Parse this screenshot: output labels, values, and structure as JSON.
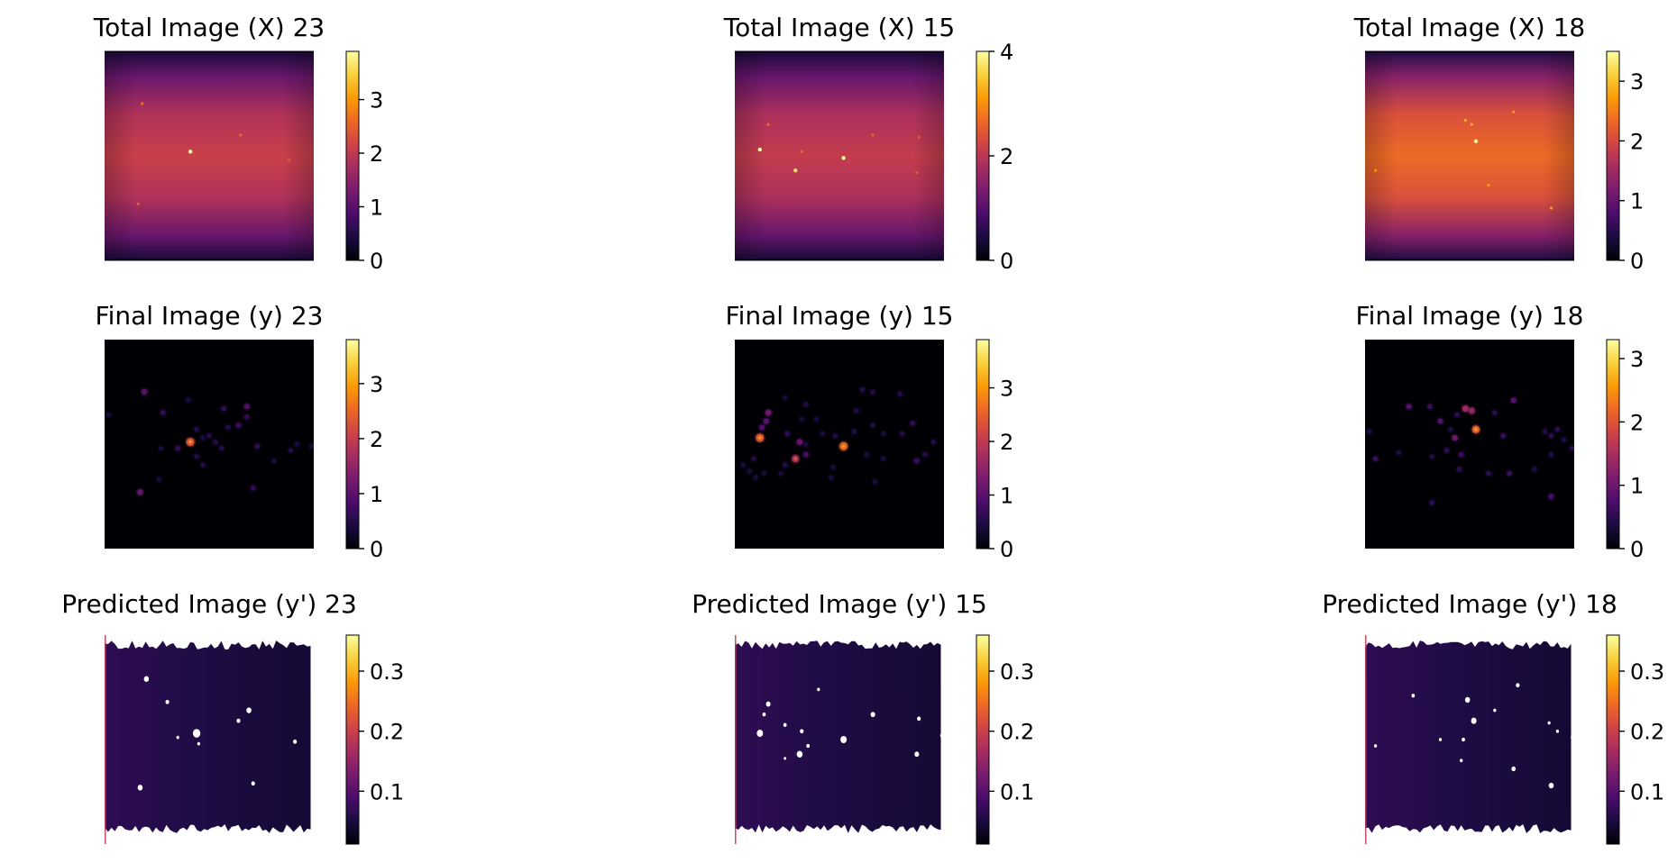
{
  "chart_data": [
    {
      "type": "heatmap",
      "title": "Total Image (X) 23",
      "kind": "total",
      "colormap": "inferno",
      "clim": [
        0,
        3.9
      ],
      "colorbar_ticks": [
        0,
        1,
        2,
        3
      ],
      "colorbar_tick_labels": [
        "0",
        "1",
        "2",
        "3"
      ],
      "background_level": 2.1,
      "hotspots": [
        [
          0.41,
          0.48,
          2.6
        ],
        [
          0.18,
          0.25,
          0.6
        ],
        [
          0.65,
          0.4,
          0.5
        ],
        [
          0.16,
          0.73,
          0.4
        ],
        [
          0.88,
          0.52,
          0.3
        ]
      ]
    },
    {
      "type": "heatmap",
      "title": "Total Image (X) 15",
      "kind": "total",
      "colormap": "inferno",
      "clim": [
        0,
        4.0
      ],
      "colorbar_ticks": [
        0,
        2,
        4
      ],
      "colorbar_tick_labels": [
        "0",
        "2",
        "4"
      ],
      "background_level": 2.1,
      "hotspots": [
        [
          0.12,
          0.47,
          2.2
        ],
        [
          0.52,
          0.51,
          2.2
        ],
        [
          0.29,
          0.57,
          1.6
        ],
        [
          0.16,
          0.35,
          0.6
        ],
        [
          0.32,
          0.48,
          0.5
        ],
        [
          0.66,
          0.4,
          0.5
        ],
        [
          0.88,
          0.41,
          0.4
        ],
        [
          0.87,
          0.58,
          0.4
        ]
      ]
    },
    {
      "type": "heatmap",
      "title": "Total Image (X) 18",
      "kind": "total",
      "colormap": "inferno",
      "clim": [
        0,
        3.5
      ],
      "colorbar_ticks": [
        0,
        1,
        2,
        3
      ],
      "colorbar_tick_labels": [
        "0",
        "1",
        "2",
        "3"
      ],
      "background_level": 2.35,
      "hotspots": [
        [
          0.53,
          0.43,
          1.1
        ],
        [
          0.48,
          0.33,
          0.6
        ],
        [
          0.51,
          0.35,
          0.5
        ],
        [
          0.71,
          0.29,
          0.4
        ],
        [
          0.59,
          0.64,
          0.4
        ],
        [
          0.89,
          0.75,
          0.4
        ],
        [
          0.05,
          0.57,
          0.3
        ]
      ]
    },
    {
      "type": "heatmap",
      "title": "Final Image (y) 23",
      "kind": "final",
      "colormap": "inferno",
      "clim": [
        0,
        3.8
      ],
      "colorbar_ticks": [
        0,
        1,
        2,
        3
      ],
      "colorbar_tick_labels": [
        "0",
        "1",
        "2",
        "3"
      ],
      "points": [
        [
          0.41,
          0.49,
          2.3
        ],
        [
          0.19,
          0.25,
          1.0
        ],
        [
          0.17,
          0.73,
          1.1
        ],
        [
          0.68,
          0.32,
          0.9
        ],
        [
          0.57,
          0.33,
          0.6
        ],
        [
          0.68,
          0.37,
          0.6
        ],
        [
          0.28,
          0.35,
          0.6
        ],
        [
          0.4,
          0.29,
          0.4
        ],
        [
          0.35,
          0.52,
          0.6
        ],
        [
          0.44,
          0.56,
          0.5
        ],
        [
          0.5,
          0.46,
          0.5
        ],
        [
          0.53,
          0.49,
          0.5
        ],
        [
          0.56,
          0.52,
          0.5
        ],
        [
          0.64,
          0.41,
          0.7
        ],
        [
          0.44,
          0.43,
          0.5
        ],
        [
          0.59,
          0.42,
          0.5
        ],
        [
          0.27,
          0.52,
          0.4
        ],
        [
          0.47,
          0.6,
          0.5
        ],
        [
          0.73,
          0.51,
          0.6
        ],
        [
          0.89,
          0.53,
          0.5
        ],
        [
          0.99,
          0.51,
          0.4
        ],
        [
          0.92,
          0.5,
          0.4
        ],
        [
          0.81,
          0.58,
          0.4
        ],
        [
          0.71,
          0.71,
          0.6
        ],
        [
          0.26,
          0.67,
          0.4
        ],
        [
          0.02,
          0.36,
          0.4
        ],
        [
          0.47,
          0.47,
          0.4
        ]
      ]
    },
    {
      "type": "heatmap",
      "title": "Final Image (y) 15",
      "kind": "final",
      "colormap": "inferno",
      "clim": [
        0,
        3.9
      ],
      "colorbar_ticks": [
        0,
        1,
        2,
        3
      ],
      "colorbar_tick_labels": [
        "0",
        "1",
        "2",
        "3"
      ],
      "points": [
        [
          0.12,
          0.47,
          2.4
        ],
        [
          0.52,
          0.51,
          2.5
        ],
        [
          0.29,
          0.57,
          1.8
        ],
        [
          0.16,
          0.35,
          1.2
        ],
        [
          0.15,
          0.39,
          1.0
        ],
        [
          0.13,
          0.42,
          0.9
        ],
        [
          0.31,
          0.49,
          1.1
        ],
        [
          0.34,
          0.55,
          0.8
        ],
        [
          0.25,
          0.45,
          0.6
        ],
        [
          0.24,
          0.6,
          0.5
        ],
        [
          0.09,
          0.57,
          0.5
        ],
        [
          0.07,
          0.63,
          0.4
        ],
        [
          0.14,
          0.64,
          0.4
        ],
        [
          0.22,
          0.64,
          0.4
        ],
        [
          0.34,
          0.31,
          0.5
        ],
        [
          0.32,
          0.38,
          0.4
        ],
        [
          0.39,
          0.38,
          0.4
        ],
        [
          0.42,
          0.45,
          0.4
        ],
        [
          0.47,
          0.61,
          0.4
        ],
        [
          0.58,
          0.34,
          0.5
        ],
        [
          0.66,
          0.41,
          0.5
        ],
        [
          0.63,
          0.55,
          0.4
        ],
        [
          0.71,
          0.57,
          0.4
        ],
        [
          0.71,
          0.45,
          0.4
        ],
        [
          0.67,
          0.68,
          0.4
        ],
        [
          0.8,
          0.45,
          0.5
        ],
        [
          0.85,
          0.4,
          0.6
        ],
        [
          0.87,
          0.58,
          0.7
        ],
        [
          0.91,
          0.55,
          0.5
        ],
        [
          0.95,
          0.49,
          0.5
        ],
        [
          0.79,
          0.26,
          0.5
        ],
        [
          0.66,
          0.25,
          0.5
        ],
        [
          0.61,
          0.24,
          0.5
        ],
        [
          0.57,
          0.44,
          0.5
        ],
        [
          0.48,
          0.46,
          0.5
        ],
        [
          0.46,
          0.66,
          0.4
        ],
        [
          0.24,
          0.28,
          0.4
        ],
        [
          0.34,
          0.5,
          0.4
        ],
        [
          0.1,
          0.66,
          0.4
        ],
        [
          0.04,
          0.6,
          0.4
        ]
      ]
    },
    {
      "type": "heatmap",
      "title": "Final Image (y) 18",
      "kind": "final",
      "colormap": "inferno",
      "clim": [
        0,
        3.3
      ],
      "colorbar_ticks": [
        0,
        1,
        2,
        3
      ],
      "colorbar_tick_labels": [
        "0",
        "1",
        "2",
        "3"
      ],
      "points": [
        [
          0.53,
          0.43,
          2.1
        ],
        [
          0.48,
          0.33,
          1.4
        ],
        [
          0.51,
          0.34,
          1.3
        ],
        [
          0.43,
          0.47,
          1.0
        ],
        [
          0.36,
          0.39,
          0.8
        ],
        [
          0.71,
          0.29,
          0.8
        ],
        [
          0.21,
          0.32,
          0.8
        ],
        [
          0.31,
          0.32,
          0.6
        ],
        [
          0.62,
          0.35,
          0.5
        ],
        [
          0.44,
          0.36,
          0.5
        ],
        [
          0.46,
          0.55,
          0.6
        ],
        [
          0.39,
          0.53,
          0.5
        ],
        [
          0.45,
          0.62,
          0.5
        ],
        [
          0.66,
          0.46,
          0.6
        ],
        [
          0.69,
          0.64,
          0.6
        ],
        [
          0.89,
          0.75,
          0.7
        ],
        [
          0.89,
          0.46,
          0.5
        ],
        [
          0.92,
          0.43,
          0.5
        ],
        [
          0.95,
          0.48,
          0.4
        ],
        [
          0.99,
          0.52,
          0.5
        ],
        [
          0.89,
          0.55,
          0.4
        ],
        [
          0.86,
          0.44,
          0.4
        ],
        [
          0.59,
          0.64,
          0.5
        ],
        [
          0.32,
          0.56,
          0.4
        ],
        [
          0.81,
          0.62,
          0.4
        ],
        [
          0.05,
          0.57,
          0.6
        ],
        [
          0.02,
          0.44,
          0.4
        ],
        [
          0.16,
          0.54,
          0.4
        ],
        [
          0.32,
          0.78,
          0.5
        ],
        [
          0.41,
          0.43,
          0.4
        ]
      ]
    },
    {
      "type": "heatmap",
      "title": "Predicted Image (y') 23",
      "kind": "predicted",
      "colormap": "inferno",
      "clim": [
        0.012,
        0.36
      ],
      "colorbar_ticks": [
        0.1,
        0.2,
        0.3
      ],
      "colorbar_tick_labels": [
        "0.1",
        "0.2",
        "0.3"
      ],
      "background_level": 0.05,
      "masked_spots": [
        [
          0.44,
          0.47,
          0.018
        ],
        [
          0.2,
          0.21,
          0.012
        ],
        [
          0.17,
          0.73,
          0.012
        ],
        [
          0.3,
          0.32,
          0.009
        ],
        [
          0.69,
          0.36,
          0.012
        ],
        [
          0.64,
          0.41,
          0.009
        ],
        [
          0.35,
          0.49,
          0.007
        ],
        [
          0.45,
          0.52,
          0.007
        ],
        [
          0.91,
          0.51,
          0.009
        ],
        [
          0.71,
          0.71,
          0.009
        ]
      ]
    },
    {
      "type": "heatmap",
      "title": "Predicted Image (y') 15",
      "kind": "predicted",
      "colormap": "inferno",
      "clim": [
        0.012,
        0.36
      ],
      "colorbar_ticks": [
        0.1,
        0.2,
        0.3
      ],
      "colorbar_tick_labels": [
        "0.1",
        "0.2",
        "0.3"
      ],
      "background_level": 0.05,
      "masked_spots": [
        [
          0.12,
          0.47,
          0.015
        ],
        [
          0.52,
          0.5,
          0.015
        ],
        [
          0.31,
          0.57,
          0.014
        ],
        [
          0.16,
          0.33,
          0.011
        ],
        [
          0.14,
          0.38,
          0.008
        ],
        [
          0.32,
          0.46,
          0.009
        ],
        [
          0.24,
          0.43,
          0.008
        ],
        [
          0.66,
          0.38,
          0.011
        ],
        [
          0.88,
          0.4,
          0.009
        ],
        [
          0.87,
          0.57,
          0.011
        ],
        [
          0.99,
          0.48,
          0.008
        ],
        [
          0.4,
          0.26,
          0.007
        ],
        [
          0.35,
          0.53,
          0.008
        ],
        [
          0.24,
          0.59,
          0.006
        ]
      ]
    },
    {
      "type": "heatmap",
      "title": "Predicted Image (y') 18",
      "kind": "predicted",
      "colormap": "inferno",
      "clim": [
        0.012,
        0.36
      ],
      "colorbar_ticks": [
        0.1,
        0.2,
        0.3
      ],
      "colorbar_tick_labels": [
        "0.1",
        "0.2",
        "0.3"
      ],
      "background_level": 0.05,
      "masked_spots": [
        [
          0.52,
          0.41,
          0.013
        ],
        [
          0.49,
          0.31,
          0.012
        ],
        [
          0.73,
          0.24,
          0.009
        ],
        [
          0.23,
          0.29,
          0.008
        ],
        [
          0.62,
          0.36,
          0.007
        ],
        [
          0.88,
          0.42,
          0.007
        ],
        [
          0.89,
          0.72,
          0.012
        ],
        [
          0.71,
          0.64,
          0.01
        ],
        [
          0.99,
          0.49,
          0.007
        ],
        [
          0.36,
          0.5,
          0.007
        ],
        [
          0.47,
          0.5,
          0.008
        ],
        [
          0.46,
          0.6,
          0.007
        ],
        [
          0.05,
          0.53,
          0.007
        ],
        [
          0.92,
          0.46,
          0.007
        ]
      ]
    }
  ]
}
